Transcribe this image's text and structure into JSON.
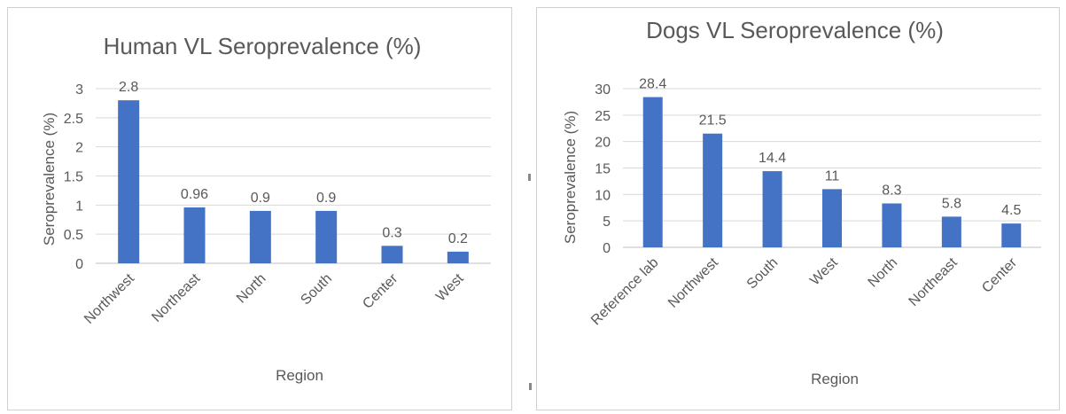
{
  "chart_data": [
    {
      "type": "bar",
      "title": "Human VL Seroprevalence (%)",
      "xlabel": "Region",
      "ylabel": "Seroprevalence (%)",
      "categories": [
        "Northwest",
        "Northeast",
        "North",
        "South",
        "Center",
        "West"
      ],
      "values": [
        2.8,
        0.96,
        0.9,
        0.9,
        0.3,
        0.2
      ],
      "data_labels": [
        "2.8",
        "0.96",
        "0.9",
        "0.9",
        "0.3",
        "0.2"
      ],
      "ylim": [
        0,
        3
      ],
      "yticks": [
        "0",
        "0.5",
        "1",
        "1.5",
        "2",
        "2.5",
        "3"
      ],
      "ytick_values": [
        0,
        0.5,
        1,
        1.5,
        2,
        2.5,
        3
      ],
      "grid": true,
      "bar_color": "#4472c4"
    },
    {
      "type": "bar",
      "title": "Dogs VL Seroprevalence (%)",
      "xlabel": "Region",
      "ylabel": "Seroprevalence (%)",
      "categories": [
        "Reference lab",
        "Northwest",
        "South",
        "West",
        "North",
        "Northeast",
        "Center"
      ],
      "values": [
        28.4,
        21.5,
        14.4,
        11,
        8.3,
        5.8,
        4.5
      ],
      "data_labels": [
        "28.4",
        "21.5",
        "14.4",
        "11",
        "8.3",
        "5.8",
        "4.5"
      ],
      "ylim": [
        0,
        30
      ],
      "yticks": [
        "0",
        "5",
        "10",
        "15",
        "20",
        "25",
        "30"
      ],
      "ytick_values": [
        0,
        5,
        10,
        15,
        20,
        25,
        30
      ],
      "grid": true,
      "bar_color": "#4472c4"
    }
  ]
}
